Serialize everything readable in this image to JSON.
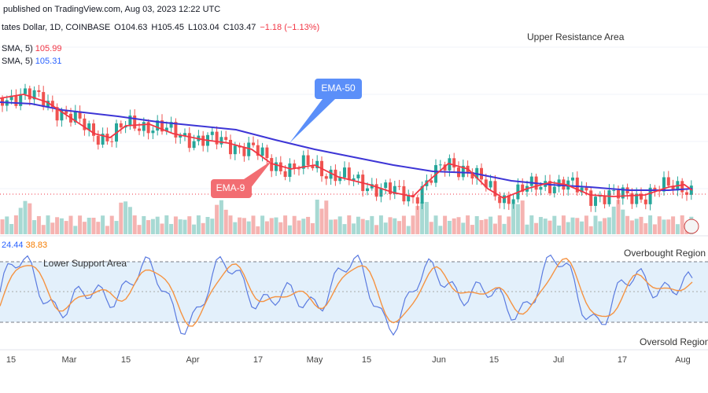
{
  "header": {
    "publisher": "published on TradingView.com, Aug 03, 2023 12:22 UTC",
    "symbol": "tates Dollar, 1D, COINBASE",
    "ohlc": [
      "O104.63",
      "H105.45",
      "L103.04",
      "C103.47",
      "−1.18 (−1.13%)"
    ]
  },
  "indicators": [
    {
      "name": "SMA, 5)",
      "value": "105.99",
      "color": "#f23645"
    },
    {
      "name": "SMA, 5)",
      "value": "105.31",
      "color": "#2962ff"
    }
  ],
  "oscillator_values": [
    {
      "value": "24.44",
      "color": "#2962ff"
    },
    {
      "value": "38.83",
      "color": "#f57c00"
    }
  ],
  "annotations": {
    "upper": "Upper Resistance Area",
    "lower": "Lower Support Area",
    "overbought": "Overbought Region",
    "oversold": "Oversold Region",
    "ema50": "EMA-50",
    "ema9": "EMA-9"
  },
  "x_axis": [
    "15",
    "Mar",
    "15",
    "Apr",
    "17",
    "May",
    "15",
    "Jun",
    "15",
    "Jul",
    "17",
    "Aug"
  ]
}
